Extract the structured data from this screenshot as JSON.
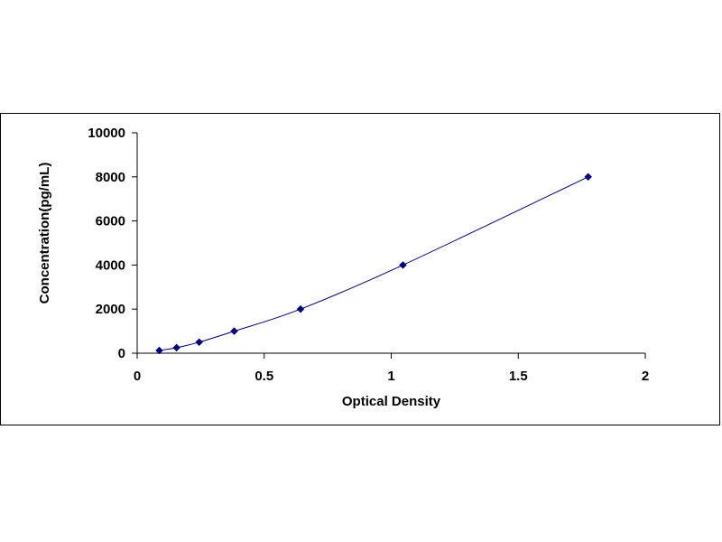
{
  "chart_data": {
    "type": "scatter",
    "title": "",
    "xlabel": "Optical Density",
    "ylabel": "Concentration(pg/mL)",
    "xlim": [
      0,
      2
    ],
    "ylim": [
      0,
      10000
    ],
    "x_ticks": [
      0,
      0.5,
      1,
      1.5,
      2
    ],
    "x_tick_labels": [
      "0",
      "0.5",
      "1",
      "1.5",
      "2"
    ],
    "y_ticks": [
      0,
      2000,
      4000,
      6000,
      8000,
      10000
    ],
    "y_tick_labels": [
      "0",
      "2000",
      "4000",
      "6000",
      "8000",
      "10000"
    ],
    "grid": false,
    "legend": "none",
    "series": [
      {
        "x": [
          0.087,
          0.155,
          0.244,
          0.382,
          0.643,
          1.046,
          1.775
        ],
        "y": [
          125,
          250,
          500,
          1000,
          2000,
          4000,
          8000
        ],
        "marker": "diamond",
        "color": "#000080",
        "trendline": "smooth curve",
        "trendline_color": "#000080"
      }
    ]
  }
}
